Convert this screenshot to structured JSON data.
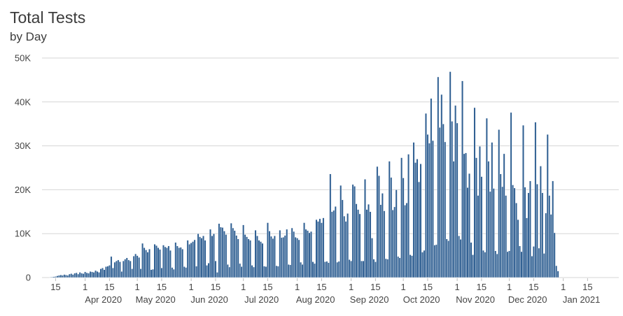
{
  "chart_data": {
    "type": "bar",
    "title": "Total Tests",
    "subtitle": "by Day",
    "ylim": [
      0,
      50000
    ],
    "y_ticks": [
      0,
      10000,
      20000,
      30000,
      40000,
      50000
    ],
    "y_tick_labels": [
      "0",
      "10K",
      "20K",
      "30K",
      "40K",
      "50K"
    ],
    "x_range": [
      "2020-03-12",
      "2021-01-16"
    ],
    "x_day_ticks": [
      {
        "date": "2020-03-15",
        "label": "15"
      },
      {
        "date": "2020-04-01",
        "label": "1"
      },
      {
        "date": "2020-04-15",
        "label": "15"
      },
      {
        "date": "2020-05-01",
        "label": "1"
      },
      {
        "date": "2020-05-15",
        "label": "15"
      },
      {
        "date": "2020-06-01",
        "label": "1"
      },
      {
        "date": "2020-06-15",
        "label": "15"
      },
      {
        "date": "2020-07-01",
        "label": "1"
      },
      {
        "date": "2020-07-15",
        "label": "15"
      },
      {
        "date": "2020-08-01",
        "label": "1"
      },
      {
        "date": "2020-08-15",
        "label": "15"
      },
      {
        "date": "2020-09-01",
        "label": "1"
      },
      {
        "date": "2020-09-15",
        "label": "15"
      },
      {
        "date": "2020-10-01",
        "label": "1"
      },
      {
        "date": "2020-10-15",
        "label": "15"
      },
      {
        "date": "2020-11-01",
        "label": "1"
      },
      {
        "date": "2020-11-15",
        "label": "15"
      },
      {
        "date": "2020-12-01",
        "label": "1"
      },
      {
        "date": "2020-12-15",
        "label": "15"
      },
      {
        "date": "2021-01-01",
        "label": "1"
      },
      {
        "date": "2021-01-15",
        "label": "15"
      }
    ],
    "x_month_ticks": [
      {
        "date": "2020-04-01",
        "label": "Apr 2020"
      },
      {
        "date": "2020-05-01",
        "label": "May 2020"
      },
      {
        "date": "2020-06-01",
        "label": "Jun 2020"
      },
      {
        "date": "2020-07-01",
        "label": "Jul 2020"
      },
      {
        "date": "2020-08-01",
        "label": "Aug 2020"
      },
      {
        "date": "2020-09-01",
        "label": "Sep 2020"
      },
      {
        "date": "2020-10-01",
        "label": "Oct 2020"
      },
      {
        "date": "2020-11-01",
        "label": "Nov 2020"
      },
      {
        "date": "2020-12-01",
        "label": "Dec 2020"
      },
      {
        "date": "2021-01-01",
        "label": "Jan 2021"
      }
    ],
    "grid": true,
    "bar_color": "#2f5f92",
    "bar_edge_color": "#ffffff",
    "series": [
      {
        "start_date": "2020-03-12",
        "values": [
          100,
          150,
          200,
          250,
          400,
          500,
          600,
          500,
          700,
          600,
          500,
          800,
          900,
          700,
          1000,
          1100,
          800,
          1200,
          1000,
          900,
          1300,
          1100,
          1000,
          1400,
          1300,
          1200,
          1600,
          1400,
          1200,
          2000,
          2200,
          1800,
          2500,
          2600,
          2800,
          4800,
          2200,
          3500,
          3800,
          4000,
          3600,
          1400,
          3800,
          4200,
          4500,
          4000,
          3800,
          2000,
          4900,
          5400,
          5000,
          4600,
          2000,
          7800,
          6800,
          6300,
          5800,
          6500,
          1800,
          1900,
          7600,
          7300,
          6800,
          6400,
          2200,
          7400,
          7000,
          6800,
          7200,
          6200,
          2300,
          1900,
          8000,
          7200,
          6800,
          6900,
          6500,
          2500,
          2300,
          8500,
          7600,
          7900,
          8200,
          8600,
          2600,
          10000,
          9300,
          9000,
          9500,
          8500,
          2800,
          3300,
          11000,
          9500,
          10000,
          3800,
          1200,
          12300,
          11500,
          11400,
          10600,
          9800,
          3000,
          2400,
          12400,
          11300,
          10700,
          9600,
          8800,
          3200,
          2500,
          12000,
          9800,
          9300,
          8800,
          8500,
          2800,
          2400,
          10800,
          9500,
          8500,
          8200,
          7800,
          2600,
          2500,
          12500,
          10600,
          9400,
          8900,
          9500,
          2700,
          2600,
          10800,
          9100,
          9200,
          9600,
          11000,
          3000,
          2900,
          11300,
          10500,
          9200,
          9000,
          8600,
          3500,
          3000,
          12500,
          11000,
          10700,
          10200,
          10500,
          3600,
          3200,
          13200,
          12800,
          13400,
          12500,
          13600,
          3600,
          3700,
          3400,
          23600,
          15000,
          15300,
          16200,
          3500,
          3700,
          21000,
          17700,
          14000,
          12800,
          14600,
          4100,
          3800,
          21200,
          20800,
          16800,
          15500,
          14500,
          3800,
          3800,
          22400,
          15500,
          16700,
          15000,
          9000,
          4200,
          3600,
          25300,
          23200,
          16600,
          19200,
          15200,
          4300,
          4200,
          26500,
          22800,
          15400,
          16100,
          20000,
          4800,
          4500,
          27300,
          22700,
          16500,
          17000,
          28100,
          5200,
          5000,
          30800,
          26200,
          27000,
          21800,
          25900,
          5800,
          6200,
          37400,
          32600,
          30600,
          40800,
          31200,
          7400,
          7500,
          45700,
          34200,
          41700,
          35000,
          30900,
          8800,
          8400,
          46900,
          35600,
          26500,
          39200,
          35200,
          9500,
          8700,
          44800,
          28200,
          28400,
          20500,
          23700,
          8000,
          5200,
          38700,
          27300,
          18700,
          29900,
          23000,
          6200,
          5800,
          36300,
          26500,
          19600,
          30800,
          20300,
          6100,
          5400,
          33700,
          23600,
          20700,
          28200,
          18700,
          5900,
          6100,
          37600,
          21100,
          20400,
          17000,
          13200,
          7200,
          5900,
          34700,
          20600,
          13600,
          19300,
          22000,
          4900,
          7100,
          35400,
          21300,
          6700,
          25400,
          19300,
          5500,
          14700,
          32600,
          18700,
          14400,
          22000,
          10200,
          2700,
          1500
        ]
      }
    ]
  }
}
